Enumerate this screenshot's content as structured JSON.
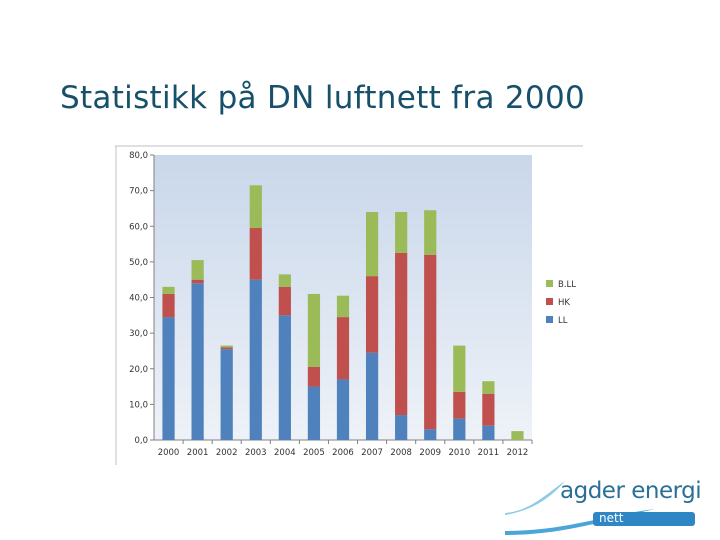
{
  "slide": {
    "title": "Statistikk på DN luftnett fra 2000"
  },
  "logo": {
    "name": "agder energi",
    "sub": "nett"
  },
  "chart_data": {
    "type": "bar",
    "stacked": true,
    "categories": [
      "2000",
      "2001",
      "2002",
      "2003",
      "2004",
      "2005",
      "2006",
      "2007",
      "2008",
      "2009",
      "2010",
      "2011",
      "2012"
    ],
    "series": [
      {
        "name": "LL",
        "color": "#4f81bd",
        "values": [
          34.5,
          44.0,
          25.5,
          45.0,
          35.0,
          15.0,
          17.0,
          24.5,
          7.0,
          3.0,
          6.0,
          4.0,
          0.0
        ]
      },
      {
        "name": "HK",
        "color": "#c0504d",
        "values": [
          6.5,
          1.0,
          0.5,
          14.5,
          8.0,
          5.5,
          17.5,
          21.5,
          45.5,
          49.0,
          7.5,
          9.0,
          0.0
        ]
      },
      {
        "name": "B.LL",
        "color": "#9bbb59",
        "values": [
          2.0,
          5.5,
          0.5,
          12.0,
          3.5,
          20.5,
          6.0,
          18.0,
          11.5,
          12.5,
          13.0,
          3.5,
          2.5
        ]
      }
    ],
    "ylim": [
      0,
      80
    ],
    "yticks": [
      "0,0",
      "10,0",
      "20,0",
      "30,0",
      "40,0",
      "50,0",
      "60,0",
      "70,0",
      "80,0"
    ],
    "legend": "right",
    "grid": false,
    "plot_background": "#dbe5f1"
  }
}
